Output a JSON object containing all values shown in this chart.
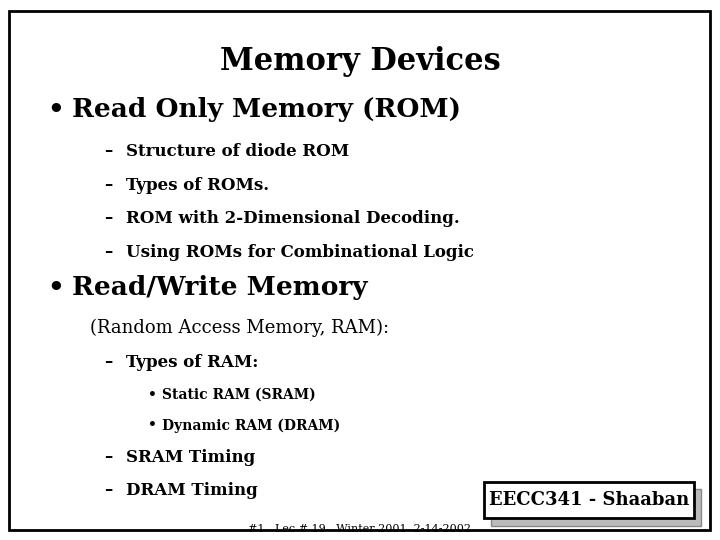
{
  "title": "Memory Devices",
  "background_color": "#ffffff",
  "border_color": "#000000",
  "title_fontsize": 22,
  "bullet1": "Read Only Memory (ROM)",
  "bullet1_fontsize": 19,
  "sub1": [
    "Structure of diode ROM",
    "Types of ROMs.",
    "ROM with 2-Dimensional Decoding.",
    "Using ROMs for Combinational Logic"
  ],
  "sub_fontsize": 12,
  "bullet2": "Read/Write Memory",
  "bullet2_fontsize": 19,
  "sub2_intro": "(Random Access Memory, RAM):",
  "sub2_intro_fontsize": 13,
  "sub2_item": "Types of RAM:",
  "sub2_sub": [
    "Static RAM (SRAM)",
    "Dynamic RAM (DRAM)"
  ],
  "sub2_sub_fontsize": 10,
  "sub2_rest": [
    "SRAM Timing",
    "DRAM Timing"
  ],
  "footer_label": "EECC341 - Shaaban",
  "footer_sub": "#1   Lec # 19   Winter 2001  2-14-2002",
  "footer_fontsize": 13,
  "footer_sub_fontsize": 8
}
